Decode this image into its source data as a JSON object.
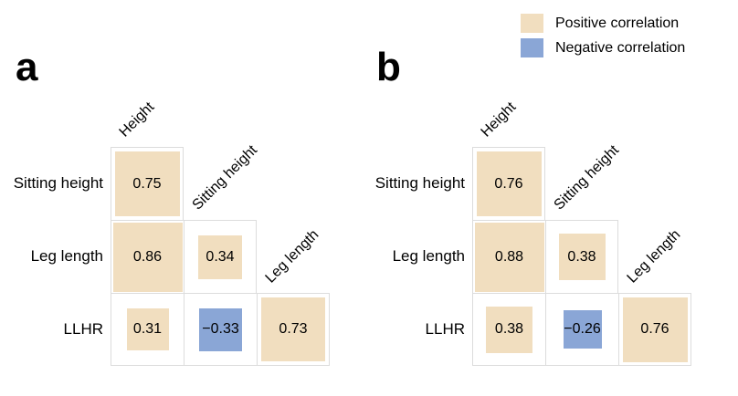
{
  "legend": {
    "items": [
      {
        "label": "Positive correlation",
        "color": "#f1debf"
      },
      {
        "label": "Negative correlation",
        "color": "#8aa6d6"
      }
    ]
  },
  "colors": {
    "positive": "#f1debf",
    "negative": "#8aa6d6",
    "grid_border": "#dcdcdc",
    "text": "#000000"
  },
  "panels": [
    {
      "label": "a",
      "row_labels": [
        "Sitting height",
        "Leg length",
        "LLHR"
      ],
      "col_labels": [
        "Height",
        "Sitting height",
        "Leg length"
      ],
      "cells": [
        {
          "row": 0,
          "col": 0,
          "value": "0.75",
          "r": 0.75
        },
        {
          "row": 1,
          "col": 0,
          "value": "0.86",
          "r": 0.86
        },
        {
          "row": 1,
          "col": 1,
          "value": "0.34",
          "r": 0.34
        },
        {
          "row": 2,
          "col": 0,
          "value": "0.31",
          "r": 0.31
        },
        {
          "row": 2,
          "col": 1,
          "value": "−0.33",
          "r": -0.33
        },
        {
          "row": 2,
          "col": 2,
          "value": "0.73",
          "r": 0.73
        }
      ]
    },
    {
      "label": "b",
      "row_labels": [
        "Sitting height",
        "Leg length",
        "LLHR"
      ],
      "col_labels": [
        "Height",
        "Sitting height",
        "Leg length"
      ],
      "cells": [
        {
          "row": 0,
          "col": 0,
          "value": "0.76",
          "r": 0.76
        },
        {
          "row": 1,
          "col": 0,
          "value": "0.88",
          "r": 0.88
        },
        {
          "row": 1,
          "col": 1,
          "value": "0.38",
          "r": 0.38
        },
        {
          "row": 2,
          "col": 0,
          "value": "0.38",
          "r": 0.38
        },
        {
          "row": 2,
          "col": 1,
          "value": "−0.26",
          "r": -0.26
        },
        {
          "row": 2,
          "col": 2,
          "value": "0.76",
          "r": 0.76
        }
      ]
    }
  ],
  "chart_data": [
    {
      "type": "heatmap",
      "title": "a",
      "rows": [
        "Sitting height",
        "Leg length",
        "LLHR"
      ],
      "cols": [
        "Height",
        "Sitting height",
        "Leg length"
      ],
      "values": [
        [
          0.75,
          null,
          null
        ],
        [
          0.86,
          0.34,
          null
        ],
        [
          0.31,
          -0.33,
          0.73
        ]
      ],
      "legend_entries": [
        "Positive correlation",
        "Negative correlation"
      ],
      "encoding": "lower-triangle correlation matrix; square side proportional to sqrt(|r|); tan = positive, blue = negative",
      "legend_position": "top-right"
    },
    {
      "type": "heatmap",
      "title": "b",
      "rows": [
        "Sitting height",
        "Leg length",
        "LLHR"
      ],
      "cols": [
        "Height",
        "Sitting height",
        "Leg length"
      ],
      "values": [
        [
          0.76,
          null,
          null
        ],
        [
          0.88,
          0.38,
          null
        ],
        [
          0.38,
          -0.26,
          0.76
        ]
      ],
      "legend_entries": [
        "Positive correlation",
        "Negative correlation"
      ],
      "encoding": "lower-triangle correlation matrix; square side proportional to sqrt(|r|); tan = positive, blue = negative",
      "legend_position": "top-right"
    }
  ]
}
